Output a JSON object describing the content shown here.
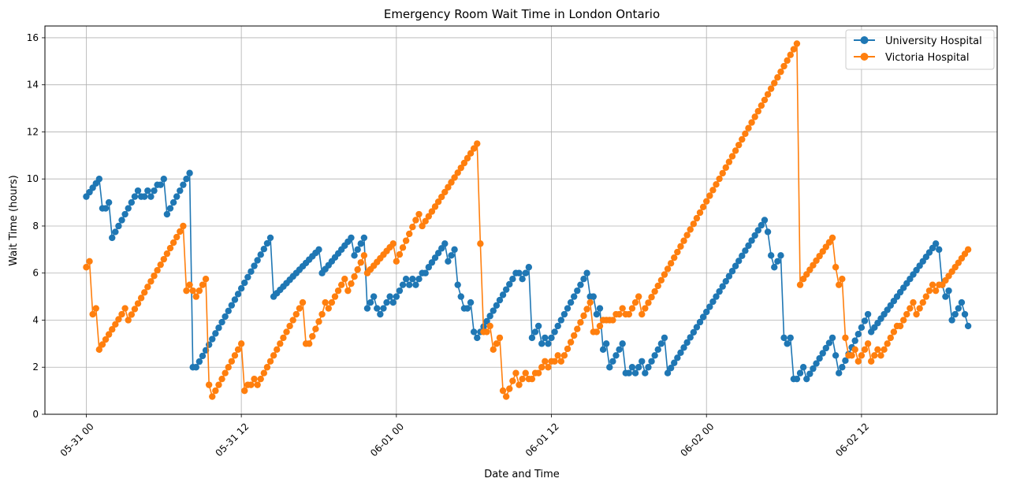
{
  "chart_data": {
    "type": "line",
    "title": "Emergency Room Wait Time in London Ontario",
    "xlabel": "Date and Time",
    "ylabel": "Wait Time (hours)",
    "x_unit": "hours since 05-31 00:00",
    "xlim": [
      -3.2,
      70.5
    ],
    "ylim": [
      0,
      16.5
    ],
    "grid": true,
    "legend_position": "top-right",
    "x_ticks": [
      {
        "value": 0,
        "label": "05-31 00"
      },
      {
        "value": 12,
        "label": "05-31 12"
      },
      {
        "value": 24,
        "label": "06-01 00"
      },
      {
        "value": 36,
        "label": "06-01 12"
      },
      {
        "value": 48,
        "label": "06-02 00"
      },
      {
        "value": 60,
        "label": "06-02 12"
      }
    ],
    "y_ticks": [
      0,
      2,
      4,
      6,
      8,
      10,
      12,
      14,
      16
    ],
    "series": [
      {
        "name": "University Hospital",
        "color": "#1f77b4",
        "points": [
          [
            0,
            9.25
          ],
          [
            1,
            10
          ],
          [
            1.25,
            8.75
          ],
          [
            1.5,
            8.75
          ],
          [
            1.75,
            9
          ],
          [
            2,
            7.5
          ],
          [
            3,
            8.5
          ],
          [
            3.75,
            9.25
          ],
          [
            4,
            9.5
          ],
          [
            4.25,
            9.25
          ],
          [
            4.5,
            9.25
          ],
          [
            4.75,
            9.5
          ],
          [
            5,
            9.25
          ],
          [
            5.25,
            9.5
          ],
          [
            5.5,
            9.75
          ],
          [
            5.75,
            9.75
          ],
          [
            6,
            10
          ],
          [
            6.25,
            8.5
          ],
          [
            7.5,
            9.75
          ],
          [
            8,
            10.25
          ],
          [
            8.25,
            2
          ],
          [
            8.5,
            2
          ],
          [
            14.25,
            7.5
          ],
          [
            14.5,
            5
          ],
          [
            18,
            7
          ],
          [
            18.25,
            6
          ],
          [
            20.5,
            7.5
          ],
          [
            20.75,
            6.75
          ],
          [
            21.5,
            7.5
          ],
          [
            21.75,
            4.5
          ],
          [
            22.25,
            5
          ],
          [
            22.5,
            4.5
          ],
          [
            22.75,
            4.25
          ],
          [
            23.5,
            5
          ],
          [
            23.75,
            4.75
          ],
          [
            24.5,
            5.5
          ],
          [
            24.75,
            5.75
          ],
          [
            25,
            5.5
          ],
          [
            25.25,
            5.75
          ],
          [
            25.5,
            5.5
          ],
          [
            25.75,
            5.75
          ],
          [
            26,
            6
          ],
          [
            26.25,
            6
          ],
          [
            26.5,
            6.25
          ],
          [
            27.75,
            7.25
          ],
          [
            28,
            6.5
          ],
          [
            28.25,
            6.75
          ],
          [
            28.5,
            7
          ],
          [
            28.75,
            5.5
          ],
          [
            29,
            5
          ],
          [
            29.25,
            4.5
          ],
          [
            29.5,
            4.5
          ],
          [
            29.75,
            4.75
          ],
          [
            30,
            3.5
          ],
          [
            30.25,
            3.25
          ],
          [
            30.5,
            3.5
          ],
          [
            33,
            5.75
          ],
          [
            33.25,
            6
          ],
          [
            33.5,
            6
          ],
          [
            33.75,
            5.75
          ],
          [
            34,
            6
          ],
          [
            34.25,
            6.25
          ],
          [
            34.5,
            3.25
          ],
          [
            35,
            3.75
          ],
          [
            35.25,
            3
          ],
          [
            35.5,
            3.25
          ],
          [
            35.75,
            3
          ],
          [
            36,
            3.25
          ],
          [
            38.75,
            6
          ],
          [
            39,
            5
          ],
          [
            39.25,
            5
          ],
          [
            39.5,
            4.25
          ],
          [
            39.75,
            4.5
          ],
          [
            40,
            2.75
          ],
          [
            40.25,
            3
          ],
          [
            40.5,
            2
          ],
          [
            40.75,
            2.25
          ],
          [
            41,
            2.5
          ],
          [
            41.5,
            3
          ],
          [
            41.75,
            1.75
          ],
          [
            42,
            1.75
          ],
          [
            42.25,
            2
          ],
          [
            42.5,
            1.75
          ],
          [
            42.75,
            2
          ],
          [
            43,
            2.25
          ],
          [
            43.25,
            1.75
          ],
          [
            44.75,
            3.25
          ],
          [
            45,
            1.75
          ],
          [
            52.5,
            8.25
          ],
          [
            52.75,
            7.75
          ],
          [
            53,
            6.75
          ],
          [
            53.25,
            6.25
          ],
          [
            53.5,
            6.5
          ],
          [
            53.75,
            6.75
          ],
          [
            54,
            3.25
          ],
          [
            54.25,
            3
          ],
          [
            54.5,
            3.25
          ],
          [
            54.75,
            1.5
          ],
          [
            55,
            1.5
          ],
          [
            55.25,
            1.75
          ],
          [
            55.5,
            2
          ],
          [
            55.75,
            1.5
          ],
          [
            57.75,
            3.25
          ],
          [
            58,
            2.5
          ],
          [
            58.25,
            1.75
          ],
          [
            58.5,
            2
          ],
          [
            60.5,
            4.25
          ],
          [
            60.75,
            3.5
          ],
          [
            65.75,
            7.25
          ],
          [
            66,
            7
          ],
          [
            66.25,
            5.5
          ],
          [
            66.5,
            5
          ],
          [
            66.75,
            5.25
          ],
          [
            67,
            4
          ],
          [
            67.25,
            4.25
          ],
          [
            67.5,
            4.5
          ],
          [
            67.75,
            4.75
          ],
          [
            68,
            4.25
          ],
          [
            68.25,
            3.75
          ]
        ]
      },
      {
        "name": "Victoria Hospital",
        "color": "#ff7f0e",
        "points": [
          [
            0,
            6.25
          ],
          [
            0.25,
            6.5
          ],
          [
            0.5,
            4.25
          ],
          [
            0.75,
            4.5
          ],
          [
            1,
            2.75
          ],
          [
            2.75,
            4.25
          ],
          [
            3,
            4.5
          ],
          [
            3.25,
            4
          ],
          [
            7.5,
            8
          ],
          [
            7.75,
            5.25
          ],
          [
            8,
            5.5
          ],
          [
            8.25,
            5.25
          ],
          [
            8.5,
            5
          ],
          [
            8.75,
            5.25
          ],
          [
            9,
            5.5
          ],
          [
            9.25,
            5.75
          ],
          [
            9.5,
            1.25
          ],
          [
            9.75,
            0.75
          ],
          [
            11.75,
            2.75
          ],
          [
            12,
            3
          ],
          [
            12.25,
            1
          ],
          [
            12.5,
            1.25
          ],
          [
            12.75,
            1.25
          ],
          [
            13,
            1.5
          ],
          [
            13.25,
            1.25
          ],
          [
            16.75,
            4.75
          ],
          [
            17,
            3
          ],
          [
            17.25,
            3
          ],
          [
            18.25,
            4.25
          ],
          [
            18.5,
            4.75
          ],
          [
            18.75,
            4.5
          ],
          [
            20,
            5.75
          ],
          [
            20.25,
            5.25
          ],
          [
            21.5,
            6.75
          ],
          [
            21.75,
            6
          ],
          [
            23.75,
            7.25
          ],
          [
            24,
            6.5
          ],
          [
            25.5,
            8.25
          ],
          [
            25.75,
            8.5
          ],
          [
            26,
            8
          ],
          [
            30.25,
            11.5
          ],
          [
            30.5,
            7.25
          ],
          [
            30.75,
            3.5
          ],
          [
            31,
            3.5
          ],
          [
            31.25,
            3.75
          ],
          [
            31.5,
            2.75
          ],
          [
            31.75,
            3
          ],
          [
            32,
            3.25
          ],
          [
            32.25,
            1
          ],
          [
            32.5,
            0.75
          ],
          [
            33.25,
            1.75
          ],
          [
            33.5,
            1.25
          ],
          [
            33.75,
            1.5
          ],
          [
            34,
            1.75
          ],
          [
            34.25,
            1.5
          ],
          [
            34.5,
            1.5
          ],
          [
            34.75,
            1.75
          ],
          [
            35,
            1.75
          ],
          [
            35.25,
            2
          ],
          [
            35.5,
            2.25
          ],
          [
            35.75,
            2
          ],
          [
            36,
            2.25
          ],
          [
            36.25,
            2.25
          ],
          [
            36.5,
            2.5
          ],
          [
            36.75,
            2.25
          ],
          [
            37,
            2.5
          ],
          [
            39,
            4.75
          ],
          [
            39.25,
            3.5
          ],
          [
            39.5,
            3.5
          ],
          [
            40,
            4
          ],
          [
            40.25,
            4
          ],
          [
            40.5,
            4
          ],
          [
            40.75,
            4
          ],
          [
            41,
            4.25
          ],
          [
            41.25,
            4.25
          ],
          [
            41.5,
            4.5
          ],
          [
            41.75,
            4.25
          ],
          [
            42,
            4.25
          ],
          [
            42.25,
            4.5
          ],
          [
            42.5,
            4.75
          ],
          [
            42.75,
            5
          ],
          [
            43,
            4.25
          ],
          [
            43.25,
            4.5
          ],
          [
            55,
            15.75
          ],
          [
            55.25,
            5.5
          ],
          [
            55.5,
            5.75
          ],
          [
            57.75,
            7.5
          ],
          [
            58,
            6.25
          ],
          [
            58.25,
            5.5
          ],
          [
            58.5,
            5.75
          ],
          [
            58.75,
            3.25
          ],
          [
            59,
            2.5
          ],
          [
            59.25,
            2.5
          ],
          [
            59.5,
            2.75
          ],
          [
            59.75,
            2.25
          ],
          [
            60,
            2.5
          ],
          [
            60.25,
            2.75
          ],
          [
            60.5,
            3
          ],
          [
            60.75,
            2.25
          ],
          [
            61,
            2.5
          ],
          [
            61.25,
            2.75
          ],
          [
            61.5,
            2.5
          ],
          [
            62.75,
            3.75
          ],
          [
            63,
            3.75
          ],
          [
            64,
            4.75
          ],
          [
            64.25,
            4.25
          ],
          [
            64.5,
            4.5
          ],
          [
            65.5,
            5.5
          ],
          [
            65.75,
            5.25
          ],
          [
            66,
            5.5
          ],
          [
            66.25,
            5.5
          ],
          [
            68.25,
            7
          ]
        ]
      }
    ]
  }
}
